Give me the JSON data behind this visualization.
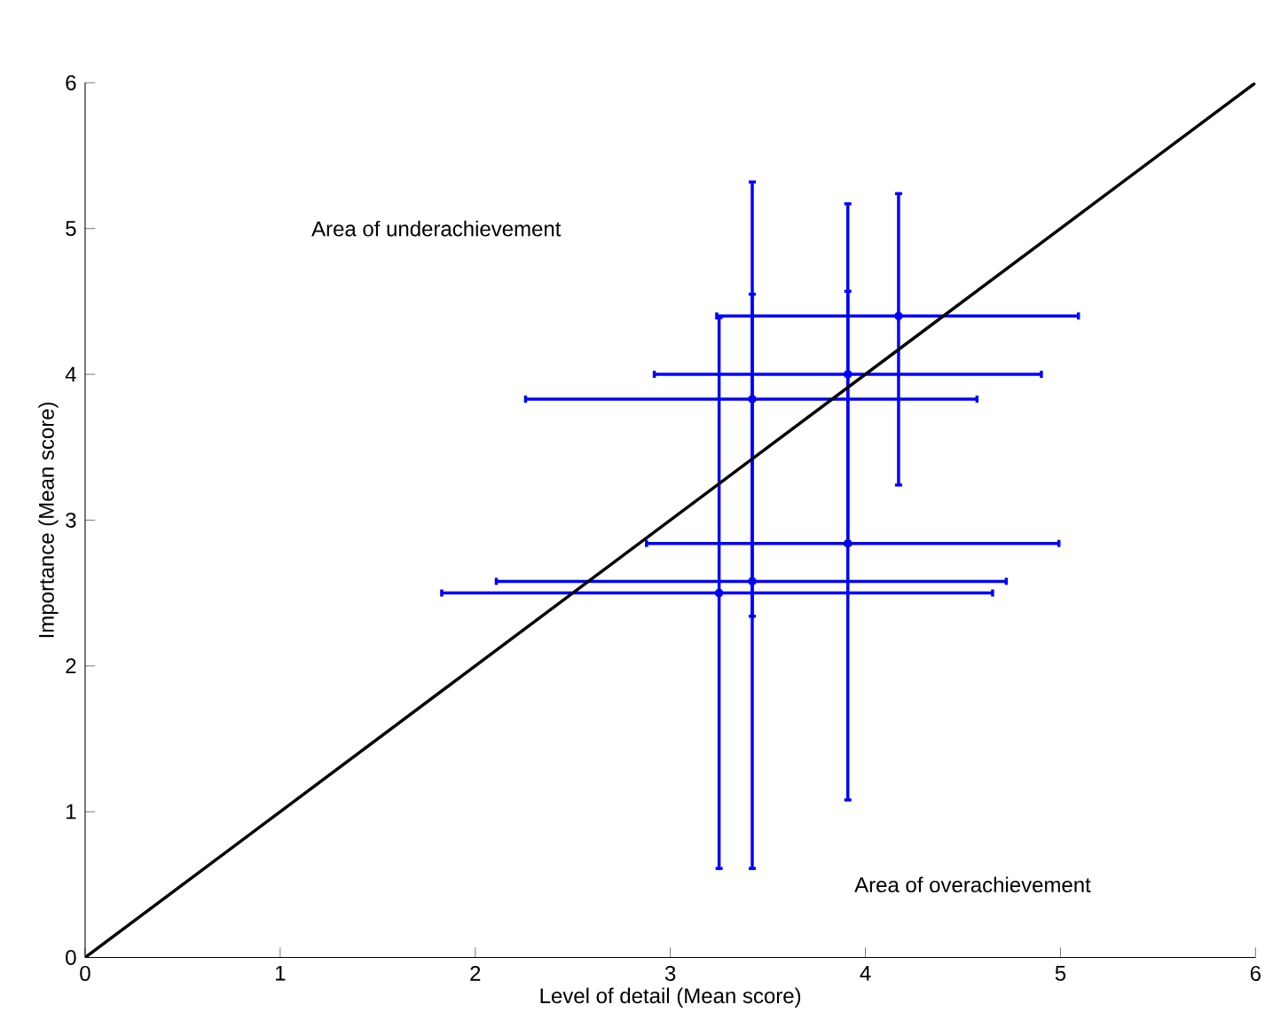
{
  "chart_data": {
    "type": "scatter",
    "xlabel": "Level of detail (Mean score)",
    "ylabel": "Importance (Mean score)",
    "annotations": [
      "Area of underachievement",
      "Area of overachievement"
    ],
    "xlim": [
      0,
      6
    ],
    "ylim": [
      0,
      6
    ],
    "xticks": [
      0,
      1,
      2,
      3,
      4,
      5,
      6
    ],
    "yticks": [
      0,
      1,
      2,
      3,
      4,
      5,
      6
    ],
    "grid": false,
    "series": [
      {
        "color": "#0000ff",
        "marker": "circle",
        "x": [
          4.17,
          3.91,
          3.42,
          3.91,
          3.25,
          3.42
        ],
        "values": [
          4.4,
          4.0,
          3.83,
          2.84,
          2.5,
          2.58
        ],
        "xerrors": [
          [
            3.23,
            5.1
          ],
          [
            2.91,
            4.91
          ],
          [
            2.25,
            4.58
          ],
          [
            2.87,
            5.0
          ],
          [
            1.82,
            4.66
          ],
          [
            2.1,
            4.73
          ]
        ],
        "errors": [
          [
            3.23,
            5.25
          ],
          [
            2.82,
            5.18
          ],
          [
            2.33,
            5.33
          ],
          [
            1.07,
            4.58
          ],
          [
            0.6,
            4.4
          ],
          [
            0.6,
            4.56
          ]
        ]
      },
      {
        "type": "line",
        "color": "#000000",
        "x": [
          0,
          6
        ],
        "values": [
          0,
          6
        ]
      }
    ]
  }
}
